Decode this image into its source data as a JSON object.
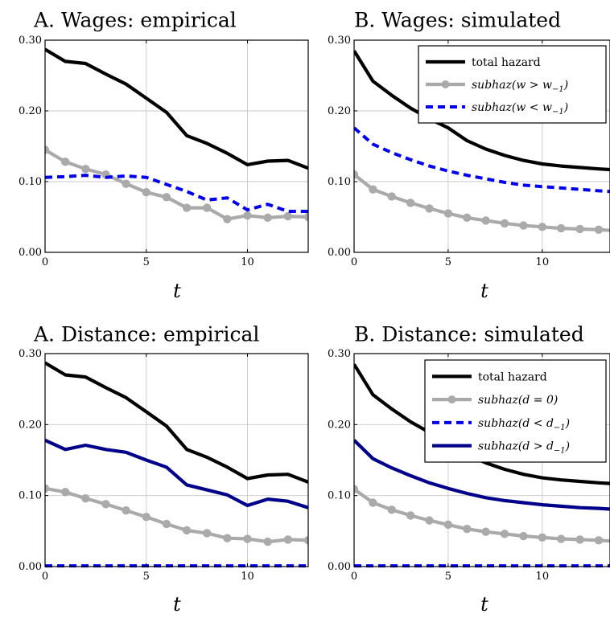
{
  "chart_data": [
    {
      "type": "line",
      "title": "A. Wages: empirical",
      "xlabel": "t",
      "ylabel": "",
      "xlim": [
        0,
        13
      ],
      "ylim": [
        0,
        0.3
      ],
      "xticks": [
        0,
        5,
        10
      ],
      "yticks": [
        0,
        0.1,
        0.2,
        0.3
      ],
      "xtick_labels": [
        "0",
        "5",
        "10"
      ],
      "ytick_labels": [
        "0.00",
        "0.10",
        "0.20",
        "0.30"
      ],
      "grid": true,
      "legend": null,
      "x": [
        0,
        1,
        2,
        3,
        4,
        5,
        6,
        7,
        8,
        9,
        10,
        11,
        12,
        13
      ],
      "series": [
        {
          "color": "#000000",
          "style": "solid",
          "markers": false,
          "values": [
            0.287,
            0.27,
            0.267,
            0.252,
            0.238,
            0.218,
            0.198,
            0.165,
            0.154,
            0.14,
            0.124,
            0.129,
            0.13,
            0.119
          ]
        },
        {
          "color": "#aaaaaa",
          "style": "solid",
          "markers": true,
          "values": [
            0.145,
            0.128,
            0.118,
            0.11,
            0.097,
            0.085,
            0.078,
            0.063,
            0.063,
            0.047,
            0.052,
            0.049,
            0.051,
            0.05
          ]
        },
        {
          "color": "#0000ee",
          "style": "dashed",
          "markers": false,
          "values": [
            0.106,
            0.107,
            0.109,
            0.106,
            0.108,
            0.106,
            0.096,
            0.086,
            0.074,
            0.077,
            0.06,
            0.068,
            0.058,
            0.058
          ]
        }
      ]
    },
    {
      "type": "line",
      "title": "B. Wages: simulated",
      "xlabel": "t",
      "ylabel": "",
      "xlim": [
        0,
        13.6
      ],
      "ylim": [
        0,
        0.3
      ],
      "xticks": [
        0,
        5,
        10
      ],
      "yticks": [
        0,
        0.1,
        0.2,
        0.3
      ],
      "xtick_labels": [
        "0",
        "5",
        "10"
      ],
      "ytick_labels": [
        "0.00",
        "0.10",
        "0.20",
        "0.30"
      ],
      "grid": true,
      "legend": {
        "position": "top-right",
        "items": [
          {
            "series": 0,
            "label": "total hazard",
            "italic": false
          },
          {
            "series": 1,
            "label": "subhaz(w > w−1)",
            "italic": true
          },
          {
            "series": 2,
            "label": "subhaz(w < w−1)",
            "italic": true
          }
        ]
      },
      "x": [
        0,
        1,
        2,
        3,
        4,
        5,
        6,
        7,
        8,
        9,
        10,
        11,
        12,
        13,
        13.6
      ],
      "series": [
        {
          "name": "total hazard",
          "color": "#000000",
          "style": "solid",
          "markers": false,
          "values": [
            0.285,
            0.242,
            0.222,
            0.204,
            0.189,
            0.176,
            0.158,
            0.146,
            0.137,
            0.13,
            0.125,
            0.122,
            0.12,
            0.118,
            0.117
          ]
        },
        {
          "name": "subhaz(w > w−1)",
          "color": "#aaaaaa",
          "style": "solid",
          "markers": true,
          "values": [
            0.11,
            0.089,
            0.079,
            0.07,
            0.062,
            0.055,
            0.049,
            0.045,
            0.041,
            0.038,
            0.036,
            0.034,
            0.033,
            0.032,
            0.031
          ]
        },
        {
          "name": "subhaz(w < w−1)",
          "color": "#0000ee",
          "style": "dashed",
          "markers": false,
          "values": [
            0.176,
            0.153,
            0.141,
            0.131,
            0.122,
            0.115,
            0.109,
            0.104,
            0.099,
            0.095,
            0.093,
            0.091,
            0.089,
            0.087,
            0.086
          ]
        }
      ]
    },
    {
      "type": "line",
      "title": "A. Distance: empirical",
      "xlabel": "t",
      "ylabel": "",
      "xlim": [
        0,
        13
      ],
      "ylim": [
        0,
        0.3
      ],
      "xticks": [
        0,
        5,
        10
      ],
      "yticks": [
        0,
        0.1,
        0.2,
        0.3
      ],
      "xtick_labels": [
        "0",
        "5",
        "10"
      ],
      "ytick_labels": [
        "0.00",
        "0.10",
        "0.20",
        "0.30"
      ],
      "grid": true,
      "legend": null,
      "x": [
        0,
        1,
        2,
        3,
        4,
        5,
        6,
        7,
        8,
        9,
        10,
        11,
        12,
        13
      ],
      "series": [
        {
          "color": "#000000",
          "style": "solid",
          "markers": false,
          "values": [
            0.287,
            0.27,
            0.267,
            0.252,
            0.238,
            0.218,
            0.198,
            0.165,
            0.154,
            0.14,
            0.124,
            0.129,
            0.13,
            0.119
          ]
        },
        {
          "color": "#aaaaaa",
          "style": "solid",
          "markers": true,
          "values": [
            0.11,
            0.105,
            0.096,
            0.088,
            0.079,
            0.07,
            0.06,
            0.051,
            0.047,
            0.04,
            0.039,
            0.035,
            0.038,
            0.037
          ]
        },
        {
          "color": "#0000ee",
          "style": "dashed",
          "markers": false,
          "values": [
            0.001,
            0.001,
            0.001,
            0.001,
            0.001,
            0.001,
            0.001,
            0.001,
            0.001,
            0.001,
            0.001,
            0.001,
            0.001,
            0.001
          ]
        },
        {
          "color": "#00008b",
          "style": "solid",
          "markers": false,
          "values": [
            0.178,
            0.165,
            0.171,
            0.165,
            0.161,
            0.15,
            0.14,
            0.115,
            0.108,
            0.101,
            0.086,
            0.095,
            0.092,
            0.083
          ]
        }
      ]
    },
    {
      "type": "line",
      "title": "B. Distance: simulated",
      "xlabel": "t",
      "ylabel": "",
      "xlim": [
        0,
        13.6
      ],
      "ylim": [
        0,
        0.3
      ],
      "xticks": [
        0,
        5,
        10
      ],
      "yticks": [
        0,
        0.1,
        0.2,
        0.3
      ],
      "xtick_labels": [
        "0",
        "5",
        "10"
      ],
      "ytick_labels": [
        "0.00",
        "0.10",
        "0.20",
        "0.30"
      ],
      "grid": true,
      "legend": {
        "position": "top-right",
        "items": [
          {
            "series": 0,
            "label": "total hazard",
            "italic": false
          },
          {
            "series": 1,
            "label": "subhaz(d = 0)",
            "italic": true
          },
          {
            "series": 2,
            "label": "subhaz(d < d−1)",
            "italic": true
          },
          {
            "series": 3,
            "label": "subhaz(d > d−1)",
            "italic": true
          }
        ]
      },
      "x": [
        0,
        1,
        2,
        3,
        4,
        5,
        6,
        7,
        8,
        9,
        10,
        11,
        12,
        13,
        13.6
      ],
      "series": [
        {
          "name": "total hazard",
          "color": "#000000",
          "style": "solid",
          "markers": false,
          "values": [
            0.285,
            0.242,
            0.222,
            0.204,
            0.189,
            0.176,
            0.158,
            0.146,
            0.137,
            0.13,
            0.125,
            0.122,
            0.12,
            0.118,
            0.117
          ]
        },
        {
          "name": "subhaz(d = 0)",
          "color": "#aaaaaa",
          "style": "solid",
          "markers": true,
          "values": [
            0.109,
            0.09,
            0.08,
            0.072,
            0.065,
            0.059,
            0.053,
            0.049,
            0.046,
            0.043,
            0.041,
            0.039,
            0.038,
            0.037,
            0.036
          ]
        },
        {
          "name": "subhaz(d < d−1)",
          "color": "#0000ee",
          "style": "dashed",
          "markers": false,
          "values": [
            0.001,
            0.001,
            0.001,
            0.001,
            0.001,
            0.001,
            0.001,
            0.001,
            0.001,
            0.001,
            0.001,
            0.001,
            0.001,
            0.001,
            0.001
          ]
        },
        {
          "name": "subhaz(d > d−1)",
          "color": "#00008b",
          "style": "solid",
          "markers": false,
          "values": [
            0.178,
            0.152,
            0.139,
            0.128,
            0.118,
            0.11,
            0.103,
            0.097,
            0.093,
            0.09,
            0.087,
            0.085,
            0.083,
            0.082,
            0.081
          ]
        }
      ]
    }
  ]
}
